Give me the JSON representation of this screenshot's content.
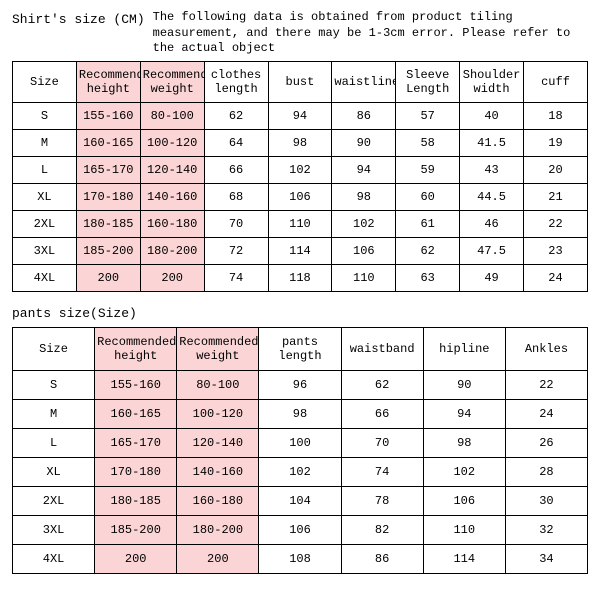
{
  "colors": {
    "highlight": "#fbd5d6",
    "border": "#000000",
    "background": "#ffffff",
    "text": "#000000"
  },
  "shirt": {
    "title": "Shirt's size (CM)",
    "disclaimer": "The following data is obtained from product tiling measurement, and there may be 1-3cm error. Please refer to the actual object",
    "headers": [
      "Size",
      "Recommended height",
      "Recommended weight",
      "clothes length",
      "bust",
      "waistline",
      "Sleeve Length",
      "Shoulder width",
      "cuff"
    ],
    "rows": [
      [
        "S",
        "155-160",
        "80-100",
        "62",
        "94",
        "86",
        "57",
        "40",
        "18"
      ],
      [
        "M",
        "160-165",
        "100-120",
        "64",
        "98",
        "90",
        "58",
        "41.5",
        "19"
      ],
      [
        "L",
        "165-170",
        "120-140",
        "66",
        "102",
        "94",
        "59",
        "43",
        "20"
      ],
      [
        "XL",
        "170-180",
        "140-160",
        "68",
        "106",
        "98",
        "60",
        "44.5",
        "21"
      ],
      [
        "2XL",
        "180-185",
        "160-180",
        "70",
        "110",
        "102",
        "61",
        "46",
        "22"
      ],
      [
        "3XL",
        "185-200",
        "180-200",
        "72",
        "114",
        "106",
        "62",
        "47.5",
        "23"
      ],
      [
        "4XL",
        "200",
        "200",
        "74",
        "118",
        "110",
        "63",
        "49",
        "24"
      ]
    ]
  },
  "pants": {
    "title": "pants size(Size)",
    "headers": [
      "Size",
      "Recommended height",
      "Recommended weight",
      "pants length",
      "waistband",
      "hipline",
      "Ankles"
    ],
    "rows": [
      [
        "S",
        "155-160",
        "80-100",
        "96",
        "62",
        "90",
        "22"
      ],
      [
        "M",
        "160-165",
        "100-120",
        "98",
        "66",
        "94",
        "24"
      ],
      [
        "L",
        "165-170",
        "120-140",
        "100",
        "70",
        "98",
        "26"
      ],
      [
        "XL",
        "170-180",
        "140-160",
        "102",
        "74",
        "102",
        "28"
      ],
      [
        "2XL",
        "180-185",
        "160-180",
        "104",
        "78",
        "106",
        "30"
      ],
      [
        "3XL",
        "185-200",
        "180-200",
        "106",
        "82",
        "110",
        "32"
      ],
      [
        "4XL",
        "200",
        "200",
        "108",
        "86",
        "114",
        "34"
      ]
    ]
  }
}
